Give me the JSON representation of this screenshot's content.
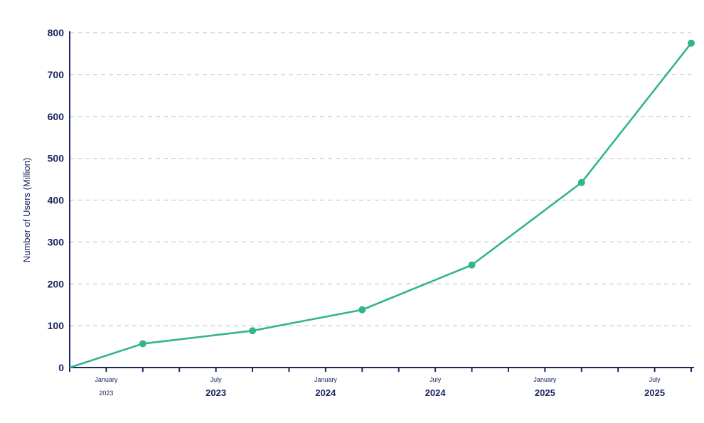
{
  "chart_data": {
    "type": "line",
    "title": "",
    "xlabel": "",
    "ylabel": "Number of Users (Million)",
    "ylim": [
      0,
      800
    ],
    "yticks": [
      0,
      100,
      200,
      300,
      400,
      500,
      600,
      700,
      800
    ],
    "grid": "horizontal dashed",
    "x_tick_labels": [
      {
        "date": "2023-01",
        "top": "January",
        "bottom": "2023",
        "emphasis": "small"
      },
      {
        "date": "2023-07",
        "top": "July",
        "bottom": "2023",
        "emphasis": "large"
      },
      {
        "date": "2024-01",
        "top": "January",
        "bottom": "2024",
        "emphasis": "large"
      },
      {
        "date": "2024-07",
        "top": "July",
        "bottom": "2024",
        "emphasis": "large"
      },
      {
        "date": "2025-01",
        "top": "January",
        "bottom": "2025",
        "emphasis": "large"
      },
      {
        "date": "2025-07",
        "top": "July",
        "bottom": "2025",
        "emphasis": "large"
      }
    ],
    "x": [
      "2022-11",
      "2023-03",
      "2023-09",
      "2024-03",
      "2024-09",
      "2025-03",
      "2025-09"
    ],
    "series": [
      {
        "values": [
          0,
          57,
          88,
          138,
          245,
          442,
          775
        ],
        "color": "#33b58a"
      }
    ]
  }
}
